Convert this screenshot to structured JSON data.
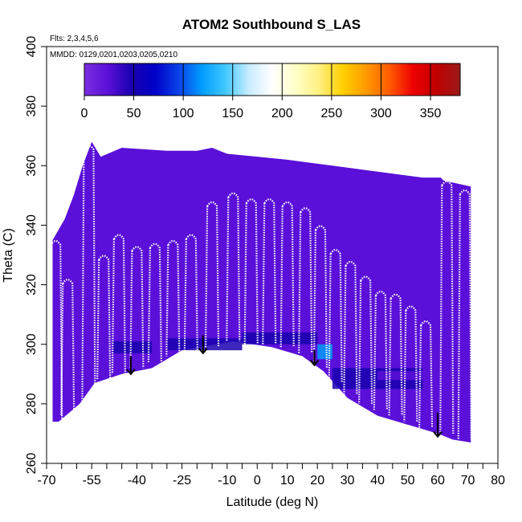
{
  "chart_data": {
    "type": "heatmap",
    "title": "ATOM2 Southbound S_LAS",
    "notes": [
      "Flts: 2,3,4,5,6",
      "MMDD: 0129,0201,0203,0205,0210"
    ],
    "xlabel": "Latitude (deg N)",
    "ylabel": "Theta (C)",
    "xlim": [
      -70,
      80
    ],
    "ylim": [
      260,
      400
    ],
    "x_ticks": [
      -70,
      -55,
      -40,
      -25,
      -10,
      0,
      10,
      20,
      30,
      40,
      50,
      60,
      70,
      80
    ],
    "x_tick_labels": [
      "-70",
      "-55",
      "-40",
      "-25",
      "-10",
      "0",
      "10",
      "20",
      "30",
      "40",
      "50",
      "60",
      "70",
      "80"
    ],
    "y_ticks": [
      260,
      280,
      300,
      320,
      340,
      360,
      380,
      400
    ],
    "y_tick_labels": [
      "260",
      "280",
      "300",
      "320",
      "340",
      "360",
      "380",
      "400"
    ],
    "colorbar": {
      "range": [
        0,
        380
      ],
      "ticks": [
        0,
        50,
        100,
        150,
        200,
        250,
        300,
        350
      ],
      "tick_labels": [
        "0",
        "50",
        "100",
        "150",
        "200",
        "250",
        "300",
        "350"
      ],
      "colors": [
        "#7a2ee0",
        "#5a10d8",
        "#1a00b0",
        "#0000c8",
        "#0a40e8",
        "#009cff",
        "#40c8ff",
        "#c8ecff",
        "#ffffff",
        "#ffffc8",
        "#fff080",
        "#ffd000",
        "#ff9a00",
        "#ff5a00",
        "#ee0000",
        "#c00000",
        "#9a1a1a"
      ]
    },
    "field_boundary": [
      [
        -68,
        335
      ],
      [
        -64,
        342
      ],
      [
        -61,
        350
      ],
      [
        -58,
        360
      ],
      [
        -55,
        368
      ],
      [
        -52,
        363
      ],
      [
        -45,
        366
      ],
      [
        -30,
        365
      ],
      [
        -20,
        365
      ],
      [
        -15,
        366
      ],
      [
        -10,
        364
      ],
      [
        0,
        363
      ],
      [
        10,
        362
      ],
      [
        25,
        360
      ],
      [
        40,
        358
      ],
      [
        55,
        356
      ],
      [
        58,
        356
      ],
      [
        61,
        356
      ],
      [
        62,
        355
      ],
      [
        71,
        353
      ],
      [
        71,
        267
      ],
      [
        65,
        268
      ],
      [
        60,
        270
      ],
      [
        40,
        276
      ],
      [
        30,
        282
      ],
      [
        22,
        291
      ],
      [
        15,
        296
      ],
      [
        5,
        299
      ],
      [
        -8,
        301
      ],
      [
        -25,
        298
      ],
      [
        -35,
        292
      ],
      [
        -45,
        290
      ],
      [
        -54,
        287
      ],
      [
        -59,
        280
      ],
      [
        -66,
        274
      ],
      [
        -68,
        274
      ]
    ],
    "background_value": 20,
    "high_value_patches": [
      {
        "x": [
          -48,
          -35
        ],
        "y": [
          297,
          301
        ],
        "value": 45
      },
      {
        "x": [
          -30,
          -5
        ],
        "y": [
          298,
          302
        ],
        "value": 40
      },
      {
        "x": [
          -5,
          20
        ],
        "y": [
          300,
          304
        ],
        "value": 50
      },
      {
        "x": [
          20,
          25
        ],
        "y": [
          295,
          300
        ],
        "value": 130
      },
      {
        "x": [
          25,
          55
        ],
        "y": [
          285,
          292
        ],
        "value": 45
      },
      {
        "x": [
          15,
          30
        ],
        "y": [
          304,
          308
        ],
        "value": 35
      },
      {
        "x": [
          40,
          60
        ],
        "y": [
          288,
          291
        ],
        "value": 30
      }
    ],
    "arrows": [
      {
        "x": -42,
        "y_top": 296,
        "y_bottom": 290
      },
      {
        "x": -18,
        "y_top": 303,
        "y_bottom": 297
      },
      {
        "x": 19,
        "y_top": 298,
        "y_bottom": 293
      },
      {
        "x": 60,
        "y_top": 277,
        "y_bottom": 269
      }
    ],
    "profiles": [
      {
        "x": -67,
        "top": 335,
        "bottom": 274
      },
      {
        "x": -63,
        "top": 322,
        "bottom": 276
      },
      {
        "x": -56,
        "top": 367,
        "bottom": 281
      },
      {
        "x": -51,
        "top": 330,
        "bottom": 288
      },
      {
        "x": -46,
        "top": 337,
        "bottom": 290
      },
      {
        "x": -40,
        "top": 333,
        "bottom": 292
      },
      {
        "x": -34,
        "top": 334,
        "bottom": 294
      },
      {
        "x": -28,
        "top": 335,
        "bottom": 296
      },
      {
        "x": -22,
        "top": 337,
        "bottom": 297
      },
      {
        "x": -15,
        "top": 348,
        "bottom": 299
      },
      {
        "x": -8,
        "top": 351,
        "bottom": 301
      },
      {
        "x": -2,
        "top": 349,
        "bottom": 300
      },
      {
        "x": 4,
        "top": 349,
        "bottom": 300
      },
      {
        "x": 10,
        "top": 348,
        "bottom": 299
      },
      {
        "x": 16,
        "top": 346,
        "bottom": 297
      },
      {
        "x": 21,
        "top": 340,
        "bottom": 292
      },
      {
        "x": 26,
        "top": 332,
        "bottom": 287
      },
      {
        "x": 31,
        "top": 328,
        "bottom": 283
      },
      {
        "x": 36,
        "top": 323,
        "bottom": 280
      },
      {
        "x": 41,
        "top": 318,
        "bottom": 278
      },
      {
        "x": 46,
        "top": 317,
        "bottom": 276
      },
      {
        "x": 51,
        "top": 313,
        "bottom": 274
      },
      {
        "x": 56,
        "top": 308,
        "bottom": 272
      },
      {
        "x": 63,
        "top": 355,
        "bottom": 270
      },
      {
        "x": 69,
        "top": 352,
        "bottom": 268
      }
    ]
  }
}
